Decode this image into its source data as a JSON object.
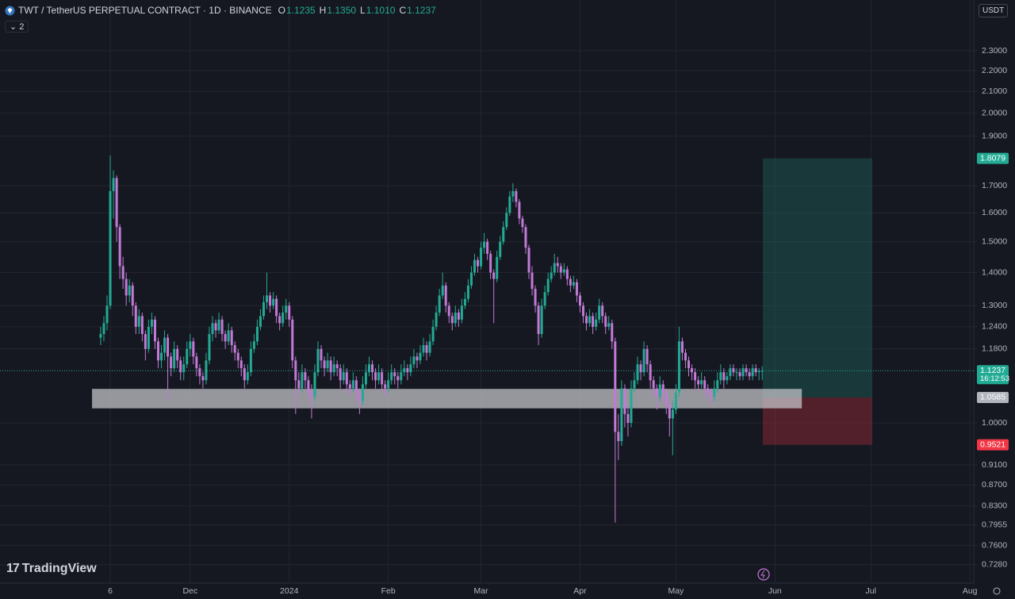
{
  "chart_data": {
    "type": "candlestick",
    "title": "TWT / TetherUS PERPETUAL CONTRACT · 1D · BINANCE",
    "legend": [
      {
        "key": "O",
        "value": "1.1235"
      },
      {
        "key": "H",
        "value": "1.1350"
      },
      {
        "key": "L",
        "value": "1.1010"
      },
      {
        "key": "C",
        "value": "1.1237"
      }
    ],
    "indicator_count": 2,
    "currency": "USDT",
    "watermark": "TradingView",
    "up_color": "#22ab94",
    "down_color": "#c27ad6",
    "log_scale": true,
    "grid": true,
    "ylim": [
      0.6985,
      2.577
    ],
    "yticks": [
      {
        "value": 2.3,
        "label": "2.3000"
      },
      {
        "value": 2.2,
        "label": "2.2000"
      },
      {
        "value": 2.1,
        "label": "2.1000"
      },
      {
        "value": 2,
        "label": "2.0000"
      },
      {
        "value": 1.9,
        "label": "1.9000"
      },
      {
        "value": 1.7,
        "label": "1.7000"
      },
      {
        "value": 1.6,
        "label": "1.6000"
      },
      {
        "value": 1.5,
        "label": "1.5000"
      },
      {
        "value": 1.4,
        "label": "1.4000"
      },
      {
        "value": 1.3,
        "label": "1.3000"
      },
      {
        "value": 1.24,
        "label": "1.2400"
      },
      {
        "value": 1.18,
        "label": "1.1800"
      },
      {
        "value": 1,
        "label": "1.0000"
      },
      {
        "value": 0.91,
        "label": "0.9100"
      },
      {
        "value": 0.87,
        "label": "0.8700"
      },
      {
        "value": 0.83,
        "label": "0.8300"
      },
      {
        "value": 0.7955,
        "label": "0.7955"
      },
      {
        "value": 0.76,
        "label": "0.7600"
      },
      {
        "value": 0.728,
        "label": "0.7280"
      }
    ],
    "xlim": [
      -31.5,
      273.2
    ],
    "xticks": [
      {
        "value": 3,
        "label": "6"
      },
      {
        "value": 28,
        "label": "Dec"
      },
      {
        "value": 59,
        "label": "2024"
      },
      {
        "value": 90,
        "label": "Feb"
      },
      {
        "value": 119,
        "label": "Mar"
      },
      {
        "value": 150,
        "label": "Apr"
      },
      {
        "value": 180,
        "label": "May"
      },
      {
        "value": 211,
        "label": "Jun"
      },
      {
        "value": 241,
        "label": "Jul"
      },
      {
        "value": 272,
        "label": "Aug"
      }
    ],
    "last_price": {
      "value": 1.1237,
      "countdown": "16:12:53"
    },
    "position": {
      "target": 1.8079,
      "entry": 1.0585,
      "stop": 0.9521,
      "xrange": [
        207.2,
        241.4
      ]
    },
    "zone": {
      "low": 1.033,
      "high": 1.079,
      "xrange": [
        -2.7,
        219.4
      ]
    },
    "candles": [
      [
        1.21,
        1.24,
        1.19,
        1.22
      ],
      [
        1.22,
        1.27,
        1.2,
        1.25
      ],
      [
        1.25,
        1.33,
        1.23,
        1.3
      ],
      [
        1.3,
        1.82,
        1.29,
        1.68
      ],
      [
        1.68,
        1.76,
        1.58,
        1.73
      ],
      [
        1.73,
        1.74,
        1.5,
        1.55
      ],
      [
        1.55,
        1.56,
        1.38,
        1.42
      ],
      [
        1.42,
        1.45,
        1.35,
        1.38
      ],
      [
        1.38,
        1.4,
        1.3,
        1.33
      ],
      [
        1.33,
        1.38,
        1.31,
        1.36
      ],
      [
        1.36,
        1.37,
        1.27,
        1.3
      ],
      [
        1.3,
        1.31,
        1.22,
        1.24
      ],
      [
        1.24,
        1.29,
        1.22,
        1.27
      ],
      [
        1.27,
        1.28,
        1.2,
        1.22
      ],
      [
        1.22,
        1.23,
        1.15,
        1.18
      ],
      [
        1.18,
        1.26,
        1.17,
        1.24
      ],
      [
        1.24,
        1.28,
        1.22,
        1.26
      ],
      [
        1.26,
        1.27,
        1.18,
        1.2
      ],
      [
        1.2,
        1.21,
        1.13,
        1.15
      ],
      [
        1.15,
        1.19,
        1.13,
        1.17
      ],
      [
        1.17,
        1.23,
        1.15,
        1.21
      ],
      [
        1.21,
        1.22,
        1.05,
        1.16
      ],
      [
        1.16,
        1.17,
        1.11,
        1.13
      ],
      [
        1.13,
        1.2,
        1.12,
        1.18
      ],
      [
        1.18,
        1.19,
        1.13,
        1.15
      ],
      [
        1.15,
        1.16,
        1.1,
        1.12
      ],
      [
        1.12,
        1.16,
        1.1,
        1.14
      ],
      [
        1.14,
        1.2,
        1.13,
        1.18
      ],
      [
        1.18,
        1.22,
        1.16,
        1.2
      ],
      [
        1.2,
        1.21,
        1.14,
        1.16
      ],
      [
        1.16,
        1.17,
        1.11,
        1.13
      ],
      [
        1.13,
        1.14,
        1.09,
        1.11
      ],
      [
        1.11,
        1.12,
        1.08,
        1.1
      ],
      [
        1.1,
        1.17,
        1.09,
        1.15
      ],
      [
        1.15,
        1.24,
        1.14,
        1.22
      ],
      [
        1.22,
        1.27,
        1.2,
        1.25
      ],
      [
        1.25,
        1.26,
        1.21,
        1.23
      ],
      [
        1.23,
        1.28,
        1.22,
        1.26
      ],
      [
        1.26,
        1.27,
        1.2,
        1.22
      ],
      [
        1.22,
        1.23,
        1.18,
        1.2
      ],
      [
        1.2,
        1.25,
        1.19,
        1.23
      ],
      [
        1.23,
        1.24,
        1.17,
        1.19
      ],
      [
        1.19,
        1.2,
        1.15,
        1.17
      ],
      [
        1.17,
        1.18,
        1.13,
        1.15
      ],
      [
        1.15,
        1.16,
        1.11,
        1.13
      ],
      [
        1.13,
        1.14,
        1.08,
        1.1
      ],
      [
        1.1,
        1.14,
        1.09,
        1.12
      ],
      [
        1.12,
        1.2,
        1.11,
        1.18
      ],
      [
        1.18,
        1.22,
        1.17,
        1.2
      ],
      [
        1.2,
        1.26,
        1.19,
        1.24
      ],
      [
        1.24,
        1.29,
        1.23,
        1.27
      ],
      [
        1.27,
        1.33,
        1.26,
        1.31
      ],
      [
        1.31,
        1.4,
        1.29,
        1.33
      ],
      [
        1.33,
        1.34,
        1.28,
        1.3
      ],
      [
        1.3,
        1.34,
        1.29,
        1.32
      ],
      [
        1.32,
        1.33,
        1.25,
        1.27
      ],
      [
        1.27,
        1.28,
        1.23,
        1.25
      ],
      [
        1.25,
        1.3,
        1.24,
        1.28
      ],
      [
        1.28,
        1.32,
        1.26,
        1.3
      ],
      [
        1.3,
        1.31,
        1.24,
        1.26
      ],
      [
        1.26,
        1.27,
        1.13,
        1.15
      ],
      [
        1.15,
        1.16,
        1.02,
        1.1
      ],
      [
        1.1,
        1.12,
        1.06,
        1.08
      ],
      [
        1.08,
        1.14,
        1.07,
        1.12
      ],
      [
        1.12,
        1.13,
        1.08,
        1.1
      ],
      [
        1.1,
        1.11,
        1.05,
        1.07
      ],
      [
        1.07,
        1.09,
        1.01,
        1.06
      ],
      [
        1.06,
        1.14,
        1.05,
        1.12
      ],
      [
        1.12,
        1.2,
        1.11,
        1.18
      ],
      [
        1.18,
        1.19,
        1.13,
        1.15
      ],
      [
        1.15,
        1.16,
        1.11,
        1.13
      ],
      [
        1.13,
        1.17,
        1.12,
        1.15
      ],
      [
        1.15,
        1.16,
        1.1,
        1.12
      ],
      [
        1.12,
        1.16,
        1.11,
        1.14
      ],
      [
        1.14,
        1.15,
        1.11,
        1.13
      ],
      [
        1.13,
        1.14,
        1.08,
        1.1
      ],
      [
        1.1,
        1.14,
        1.09,
        1.12
      ],
      [
        1.12,
        1.13,
        1.07,
        1.09
      ],
      [
        1.09,
        1.1,
        1.06,
        1.08
      ],
      [
        1.08,
        1.12,
        1.07,
        1.1
      ],
      [
        1.1,
        1.11,
        1.05,
        1.07
      ],
      [
        1.07,
        1.08,
        1.02,
        1.05
      ],
      [
        1.05,
        1.11,
        1.04,
        1.09
      ],
      [
        1.09,
        1.14,
        1.08,
        1.12
      ],
      [
        1.12,
        1.16,
        1.11,
        1.14
      ],
      [
        1.14,
        1.15,
        1.1,
        1.12
      ],
      [
        1.12,
        1.13,
        1.08,
        1.1
      ],
      [
        1.1,
        1.14,
        1.09,
        1.12
      ],
      [
        1.12,
        1.13,
        1.07,
        1.09
      ],
      [
        1.09,
        1.1,
        1.06,
        1.08
      ],
      [
        1.08,
        1.12,
        1.07,
        1.1
      ],
      [
        1.1,
        1.14,
        1.09,
        1.12
      ],
      [
        1.12,
        1.13,
        1.09,
        1.11
      ],
      [
        1.11,
        1.12,
        1.08,
        1.1
      ],
      [
        1.1,
        1.14,
        1.09,
        1.12
      ],
      [
        1.12,
        1.15,
        1.11,
        1.13
      ],
      [
        1.13,
        1.14,
        1.1,
        1.12
      ],
      [
        1.12,
        1.16,
        1.11,
        1.14
      ],
      [
        1.14,
        1.18,
        1.13,
        1.16
      ],
      [
        1.16,
        1.17,
        1.13,
        1.15
      ],
      [
        1.15,
        1.19,
        1.14,
        1.17
      ],
      [
        1.17,
        1.21,
        1.16,
        1.19
      ],
      [
        1.19,
        1.2,
        1.15,
        1.17
      ],
      [
        1.17,
        1.22,
        1.16,
        1.2
      ],
      [
        1.2,
        1.26,
        1.19,
        1.24
      ],
      [
        1.24,
        1.3,
        1.23,
        1.28
      ],
      [
        1.28,
        1.35,
        1.27,
        1.33
      ],
      [
        1.33,
        1.4,
        1.32,
        1.36
      ],
      [
        1.36,
        1.37,
        1.28,
        1.3
      ],
      [
        1.3,
        1.31,
        1.25,
        1.27
      ],
      [
        1.27,
        1.28,
        1.23,
        1.25
      ],
      [
        1.25,
        1.3,
        1.24,
        1.28
      ],
      [
        1.28,
        1.29,
        1.24,
        1.26
      ],
      [
        1.26,
        1.32,
        1.25,
        1.3
      ],
      [
        1.3,
        1.34,
        1.29,
        1.32
      ],
      [
        1.32,
        1.38,
        1.31,
        1.36
      ],
      [
        1.36,
        1.42,
        1.35,
        1.4
      ],
      [
        1.4,
        1.46,
        1.39,
        1.44
      ],
      [
        1.44,
        1.45,
        1.4,
        1.42
      ],
      [
        1.42,
        1.5,
        1.41,
        1.48
      ],
      [
        1.48,
        1.53,
        1.46,
        1.5
      ],
      [
        1.5,
        1.51,
        1.44,
        1.46
      ],
      [
        1.46,
        1.47,
        1.38,
        1.4
      ],
      [
        1.4,
        1.41,
        1.25,
        1.38
      ],
      [
        1.38,
        1.47,
        1.37,
        1.45
      ],
      [
        1.45,
        1.52,
        1.44,
        1.5
      ],
      [
        1.5,
        1.57,
        1.49,
        1.55
      ],
      [
        1.55,
        1.62,
        1.54,
        1.6
      ],
      [
        1.6,
        1.68,
        1.59,
        1.66
      ],
      [
        1.66,
        1.71,
        1.64,
        1.68
      ],
      [
        1.68,
        1.69,
        1.62,
        1.64
      ],
      [
        1.64,
        1.65,
        1.56,
        1.58
      ],
      [
        1.58,
        1.59,
        1.53,
        1.55
      ],
      [
        1.55,
        1.56,
        1.46,
        1.48
      ],
      [
        1.48,
        1.49,
        1.38,
        1.4
      ],
      [
        1.4,
        1.42,
        1.33,
        1.35
      ],
      [
        1.35,
        1.36,
        1.28,
        1.3
      ],
      [
        1.3,
        1.31,
        1.19,
        1.22
      ],
      [
        1.22,
        1.32,
        1.21,
        1.3
      ],
      [
        1.3,
        1.36,
        1.29,
        1.34
      ],
      [
        1.34,
        1.4,
        1.33,
        1.38
      ],
      [
        1.38,
        1.42,
        1.37,
        1.4
      ],
      [
        1.4,
        1.46,
        1.39,
        1.43
      ],
      [
        1.43,
        1.45,
        1.4,
        1.42
      ],
      [
        1.42,
        1.43,
        1.38,
        1.4
      ],
      [
        1.4,
        1.43,
        1.39,
        1.41
      ],
      [
        1.41,
        1.42,
        1.36,
        1.38
      ],
      [
        1.38,
        1.39,
        1.34,
        1.36
      ],
      [
        1.36,
        1.39,
        1.35,
        1.37
      ],
      [
        1.37,
        1.38,
        1.31,
        1.33
      ],
      [
        1.33,
        1.34,
        1.28,
        1.3
      ],
      [
        1.3,
        1.31,
        1.25,
        1.27
      ],
      [
        1.27,
        1.28,
        1.23,
        1.25
      ],
      [
        1.25,
        1.29,
        1.24,
        1.27
      ],
      [
        1.27,
        1.28,
        1.22,
        1.24
      ],
      [
        1.24,
        1.28,
        1.23,
        1.26
      ],
      [
        1.26,
        1.32,
        1.25,
        1.3
      ],
      [
        1.3,
        1.31,
        1.25,
        1.27
      ],
      [
        1.27,
        1.28,
        1.22,
        1.24
      ],
      [
        1.24,
        1.27,
        1.23,
        1.25
      ],
      [
        1.25,
        1.26,
        1.18,
        1.2
      ],
      [
        1.2,
        1.21,
        0.8,
        0.98
      ],
      [
        0.98,
        1.02,
        0.92,
        0.96
      ],
      [
        0.96,
        1.1,
        0.95,
        1.08
      ],
      [
        1.08,
        1.09,
        0.99,
        1.02
      ],
      [
        1.02,
        1.04,
        0.97,
        1.0
      ],
      [
        1.0,
        1.1,
        0.99,
        1.08
      ],
      [
        1.08,
        1.12,
        1.07,
        1.1
      ],
      [
        1.1,
        1.16,
        1.09,
        1.14
      ],
      [
        1.14,
        1.15,
        1.1,
        1.12
      ],
      [
        1.12,
        1.2,
        1.11,
        1.18
      ],
      [
        1.18,
        1.19,
        1.12,
        1.14
      ],
      [
        1.14,
        1.15,
        1.08,
        1.1
      ],
      [
        1.1,
        1.11,
        1.06,
        1.08
      ],
      [
        1.08,
        1.09,
        1.03,
        1.06
      ],
      [
        1.06,
        1.11,
        1.05,
        1.09
      ],
      [
        1.09,
        1.1,
        1.05,
        1.07
      ],
      [
        1.07,
        1.08,
        1.02,
        1.04
      ],
      [
        1.04,
        1.05,
        0.97,
        1.01
      ],
      [
        1.01,
        1.05,
        0.93,
        1.03
      ],
      [
        1.03,
        1.09,
        1.02,
        1.07
      ],
      [
        1.07,
        1.24,
        1.06,
        1.2
      ],
      [
        1.2,
        1.21,
        1.15,
        1.17
      ],
      [
        1.17,
        1.18,
        1.13,
        1.15
      ],
      [
        1.15,
        1.16,
        1.11,
        1.13
      ],
      [
        1.13,
        1.14,
        1.1,
        1.12
      ],
      [
        1.12,
        1.13,
        1.08,
        1.1
      ],
      [
        1.1,
        1.11,
        1.07,
        1.09
      ],
      [
        1.09,
        1.12,
        1.08,
        1.1
      ],
      [
        1.1,
        1.11,
        1.06,
        1.08
      ],
      [
        1.08,
        1.09,
        1.05,
        1.07
      ],
      [
        1.07,
        1.08,
        1.04,
        1.06
      ],
      [
        1.06,
        1.1,
        1.05,
        1.08
      ],
      [
        1.08,
        1.12,
        1.07,
        1.1
      ],
      [
        1.1,
        1.14,
        1.09,
        1.12
      ],
      [
        1.12,
        1.13,
        1.08,
        1.1
      ],
      [
        1.1,
        1.12,
        1.09,
        1.11
      ],
      [
        1.11,
        1.14,
        1.1,
        1.13
      ],
      [
        1.13,
        1.14,
        1.11,
        1.12
      ],
      [
        1.12,
        1.13,
        1.1,
        1.12
      ],
      [
        1.12,
        1.13,
        1.1,
        1.11
      ],
      [
        1.11,
        1.14,
        1.1,
        1.13
      ],
      [
        1.13,
        1.14,
        1.11,
        1.12
      ],
      [
        1.12,
        1.13,
        1.1,
        1.11
      ],
      [
        1.11,
        1.14,
        1.1,
        1.13
      ],
      [
        1.13,
        1.14,
        1.11,
        1.12
      ],
      [
        1.12,
        1.13,
        1.1,
        1.1235
      ],
      [
        1.1235,
        1.135,
        1.101,
        1.1237
      ]
    ]
  }
}
